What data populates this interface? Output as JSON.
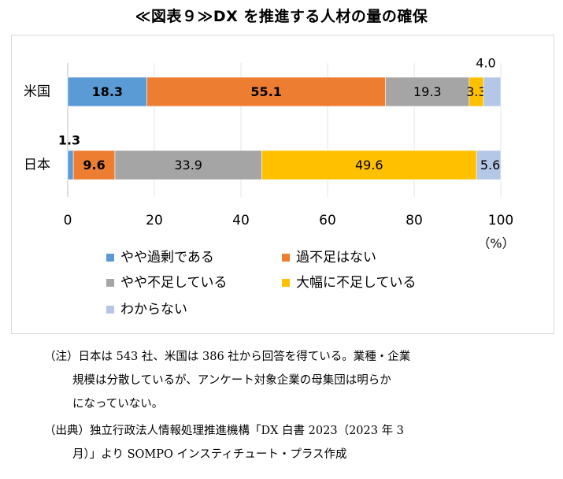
{
  "title": "≪図表９≫DX を推進する人材の量の確保",
  "chart_data": {
    "type": "bar",
    "orientation": "horizontal",
    "stacked": true,
    "categories": [
      "米国",
      "日本"
    ],
    "series": [
      {
        "name": "やや過剰である",
        "color": "#5b9bd5",
        "values": [
          18.3,
          1.3
        ]
      },
      {
        "name": "過不足はない",
        "color": "#ed7d31",
        "values": [
          55.1,
          9.6
        ]
      },
      {
        "name": "やや不足している",
        "color": "#a5a5a5",
        "values": [
          19.3,
          33.9
        ]
      },
      {
        "name": "大幅に不足している",
        "color": "#ffc000",
        "values": [
          3.3,
          49.6
        ]
      },
      {
        "name": "わからない",
        "color": "#b4c7e7",
        "values": [
          4.0,
          5.6
        ]
      }
    ],
    "value_labels": [
      [
        "18.3",
        "55.1",
        "19.3",
        "3.3",
        "4.0"
      ],
      [
        "1.3",
        "9.6",
        "33.9",
        "49.6",
        "5.6"
      ]
    ],
    "xlim": [
      0,
      100
    ],
    "xticks": [
      "0",
      "20",
      "40",
      "60",
      "80",
      "100"
    ],
    "unit_label": "（%）",
    "legend_position": "bottom"
  },
  "notes": {
    "note_head": "（注）日本は 543 社、米国は 386 社から回答を得ている。業種・企業",
    "note_line2": "規模は分散しているが、アンケート対象企業の母集団は明らか",
    "note_line3": "になっていない。",
    "source_head": "（出典）独立行政法人情報処理推進機構「DX 白書 2023（2023 年 3",
    "source_line2": "月）」より SOMPO インスティチュート・プラス作成"
  }
}
